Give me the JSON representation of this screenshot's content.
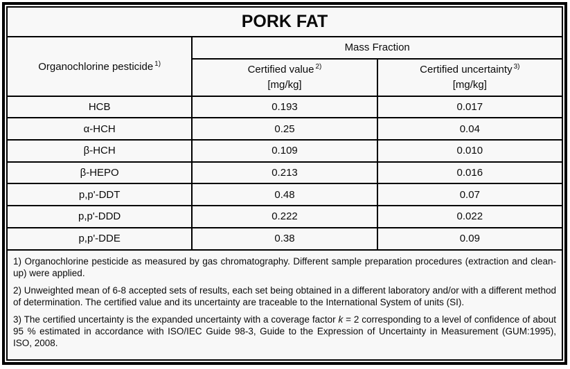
{
  "title": "PORK FAT",
  "colors": {
    "border": "#000000",
    "background": "#f8f8f8",
    "text": "#0a0a0a"
  },
  "table": {
    "col1_header": {
      "label": "Organochlorine pesticide",
      "sup": "1)"
    },
    "group_header": "Mass Fraction",
    "col2_header": {
      "label": "Certified value",
      "sup": "2)",
      "unit": "[mg/kg]"
    },
    "col3_header": {
      "label": "Certified uncertainty",
      "sup": "3)",
      "unit": "[mg/kg]"
    },
    "rows": [
      {
        "pesticide": "HCB",
        "certified_value": "0.193",
        "certified_uncertainty": "0.017"
      },
      {
        "pesticide": "α-HCH",
        "certified_value": "0.25",
        "certified_uncertainty": "0.04"
      },
      {
        "pesticide": "β-HCH",
        "certified_value": "0.109",
        "certified_uncertainty": "0.010"
      },
      {
        "pesticide": "β-HEPO",
        "certified_value": "0.213",
        "certified_uncertainty": "0.016"
      },
      {
        "pesticide": "p,p'-DDT",
        "certified_value": "0.48",
        "certified_uncertainty": "0.07"
      },
      {
        "pesticide": "p,p'-DDD",
        "certified_value": "0.222",
        "certified_uncertainty": "0.022"
      },
      {
        "pesticide": "p,p'-DDE",
        "certified_value": "0.38",
        "certified_uncertainty": "0.09"
      }
    ]
  },
  "footnotes": [
    {
      "segments": [
        {
          "text": "1) Organochlorine pesticide as measured by gas chromatography. Different sample preparation procedures (extraction and clean-up) were applied.",
          "italic": false
        }
      ]
    },
    {
      "segments": [
        {
          "text": "2) Unweighted mean of 6-8 accepted sets of results, each set being obtained in a different laboratory and/or with a different method of determination. The certified value and its uncertainty are traceable to the International System of units (SI).",
          "italic": false
        }
      ]
    },
    {
      "segments": [
        {
          "text": "3) The certified uncertainty is the expanded uncertainty with a coverage factor ",
          "italic": false
        },
        {
          "text": "k",
          "italic": true
        },
        {
          "text": " = 2 corresponding to a level of confidence of about 95 % estimated in accordance with ISO/IEC Guide 98-3, Guide to the Expression of Uncertainty in Measurement (GUM:1995), ISO, 2008.",
          "italic": false
        }
      ]
    }
  ]
}
